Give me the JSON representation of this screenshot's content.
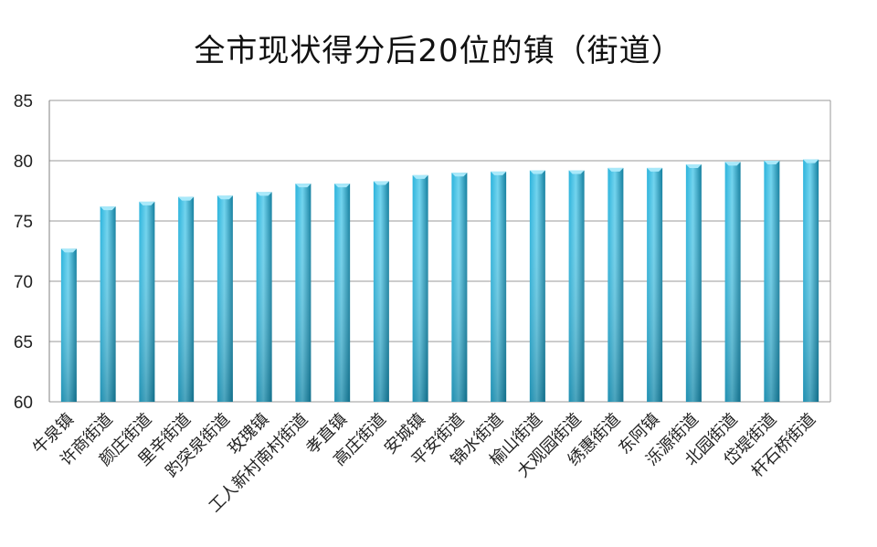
{
  "chart_data": {
    "type": "bar",
    "title": "全市现状得分后20位的镇（街道）",
    "categories": [
      "牛泉镇",
      "许商街道",
      "颜庄街道",
      "里辛街道",
      "趵突泉街道",
      "玫瑰镇",
      "工人新村南村街道",
      "孝直镇",
      "高庄街道",
      "安城镇",
      "平安街道",
      "锦水街道",
      "榆山街道",
      "大观园街道",
      "绣惠街道",
      "东阿镇",
      "泺源街道",
      "北园街道",
      "岱堤街道",
      "杆石桥街道"
    ],
    "values": [
      72.7,
      76.2,
      76.6,
      77.0,
      77.1,
      77.4,
      78.1,
      78.1,
      78.3,
      78.8,
      79.0,
      79.1,
      79.2,
      79.2,
      79.4,
      79.4,
      79.7,
      79.9,
      80.0,
      80.1
    ],
    "ylim": [
      60,
      85
    ],
    "yticks": [
      60,
      65,
      70,
      75,
      80,
      85
    ],
    "grid": true,
    "legend": "none",
    "colors": {
      "bar_light": "#6fd3ee",
      "bar_mid": "#2ab3dc",
      "bar_dark": "#137f9f",
      "grid": "#9a9a9a",
      "axis": "#808080"
    }
  }
}
